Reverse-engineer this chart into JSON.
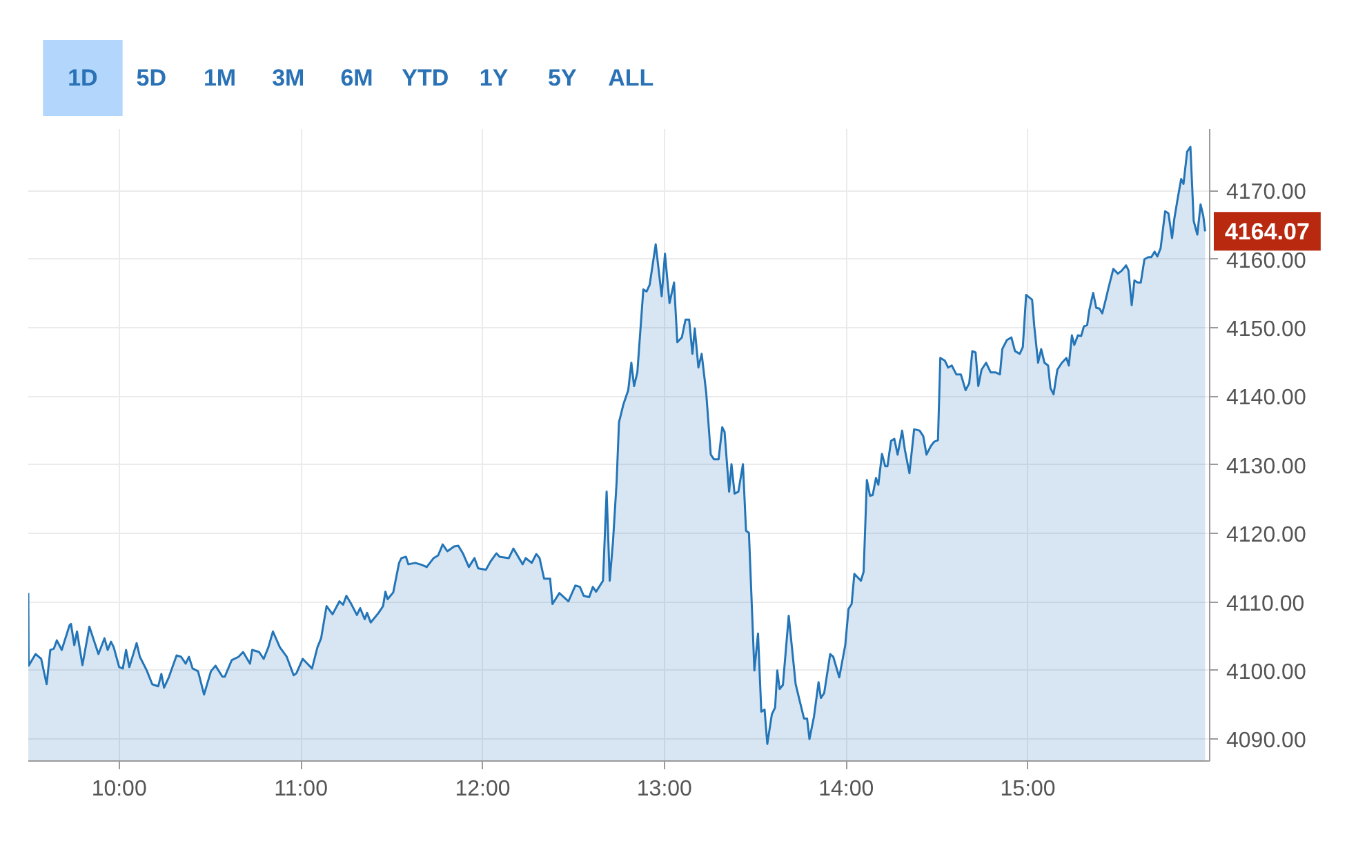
{
  "chart_data": {
    "type": "area",
    "color": "#2475b7",
    "x": [
      9.5,
      9.502,
      9.54,
      9.571,
      9.601,
      9.621,
      9.641,
      9.657,
      9.684,
      9.727,
      9.735,
      9.753,
      9.768,
      9.798,
      9.836,
      9.861,
      9.886,
      9.919,
      9.937,
      9.955,
      9.97,
      10.0,
      10.02,
      10.038,
      10.056,
      10.096,
      10.114,
      10.152,
      10.182,
      10.215,
      10.232,
      10.247,
      10.273,
      10.316,
      10.341,
      10.366,
      10.384,
      10.404,
      10.434,
      10.467,
      10.505,
      10.53,
      10.568,
      10.581,
      10.619,
      10.657,
      10.682,
      10.72,
      10.732,
      10.77,
      10.795,
      10.821,
      10.846,
      10.884,
      10.922,
      10.96,
      10.975,
      11.01,
      11.061,
      11.091,
      11.111,
      11.141,
      11.174,
      11.212,
      11.232,
      11.25,
      11.275,
      11.308,
      11.326,
      11.351,
      11.364,
      11.384,
      11.427,
      11.452,
      11.465,
      11.477,
      11.508,
      11.54,
      11.553,
      11.578,
      11.591,
      11.629,
      11.667,
      11.692,
      11.73,
      11.755,
      11.78,
      11.806,
      11.843,
      11.866,
      11.891,
      11.924,
      11.955,
      11.975,
      12.018,
      12.043,
      12.076,
      12.093,
      12.144,
      12.169,
      12.22,
      12.237,
      12.27,
      12.295,
      12.313,
      12.338,
      12.371,
      12.384,
      12.422,
      12.472,
      12.51,
      12.535,
      12.556,
      12.586,
      12.606,
      12.624,
      12.662,
      12.682,
      12.699,
      12.717,
      12.737,
      12.75,
      12.775,
      12.801,
      12.818,
      12.833,
      12.851,
      12.884,
      12.902,
      12.919,
      12.952,
      12.985,
      13.003,
      13.028,
      13.053,
      13.071,
      13.096,
      13.116,
      13.136,
      13.154,
      13.167,
      13.187,
      13.205,
      13.23,
      13.255,
      13.273,
      13.298,
      13.318,
      13.331,
      13.356,
      13.369,
      13.386,
      13.407,
      13.432,
      13.449,
      13.465,
      13.495,
      13.515,
      13.533,
      13.551,
      13.566,
      13.591,
      13.609,
      13.621,
      13.634,
      13.652,
      13.684,
      13.722,
      13.768,
      13.785,
      13.798,
      13.823,
      13.848,
      13.861,
      13.879,
      13.912,
      13.929,
      13.962,
      13.995,
      14.013,
      14.03,
      14.045,
      14.081,
      14.096,
      14.114,
      14.131,
      14.146,
      14.164,
      14.177,
      14.197,
      14.215,
      14.227,
      14.247,
      14.265,
      14.283,
      14.308,
      14.323,
      14.348,
      14.374,
      14.404,
      14.424,
      14.442,
      14.467,
      14.485,
      14.505,
      14.518,
      14.543,
      14.561,
      14.581,
      14.606,
      14.631,
      14.657,
      14.677,
      14.694,
      14.712,
      14.727,
      14.745,
      14.77,
      14.795,
      14.821,
      14.846,
      14.859,
      14.884,
      14.909,
      14.929,
      14.955,
      14.972,
      14.99,
      15.023,
      15.035,
      15.056,
      15.073,
      15.091,
      15.111,
      15.124,
      15.141,
      15.162,
      15.187,
      15.212,
      15.225,
      15.242,
      15.255,
      15.275,
      15.293,
      15.308,
      15.326,
      15.338,
      15.359,
      15.376,
      15.394,
      15.409,
      15.427,
      15.444,
      15.47,
      15.495,
      15.515,
      15.54,
      15.553,
      15.571,
      15.586,
      15.604,
      15.621,
      15.641,
      15.662,
      15.679,
      15.697,
      15.712,
      15.73,
      15.755,
      15.773,
      15.793,
      15.806,
      15.823,
      15.843,
      15.856,
      15.876,
      15.894,
      15.912,
      15.932,
      15.95,
      15.965,
      15.975
    ],
    "values": [
      4111.3,
      4100.7,
      4102.4,
      4101.7,
      4098.0,
      4103.0,
      4103.2,
      4104.4,
      4103.0,
      4106.6,
      4106.8,
      4103.7,
      4105.7,
      4100.8,
      4106.4,
      4104.4,
      4102.4,
      4104.7,
      4103.0,
      4104.2,
      4103.4,
      4100.5,
      4100.3,
      4103.0,
      4100.5,
      4104.0,
      4102.0,
      4100.0,
      4098.0,
      4097.7,
      4099.5,
      4097.5,
      4099.0,
      4102.2,
      4102.0,
      4101.0,
      4102.0,
      4100.3,
      4099.9,
      4096.5,
      4099.9,
      4100.7,
      4099.1,
      4099.1,
      4101.5,
      4102.0,
      4102.7,
      4101.0,
      4103.0,
      4102.7,
      4101.7,
      4103.4,
      4105.7,
      4103.4,
      4102.0,
      4099.3,
      4099.6,
      4101.7,
      4100.3,
      4103.4,
      4104.7,
      4109.4,
      4108.2,
      4110.1,
      4109.6,
      4110.9,
      4109.8,
      4108.1,
      4109.1,
      4107.5,
      4108.4,
      4107.0,
      4108.4,
      4109.4,
      4111.5,
      4110.4,
      4111.4,
      4115.7,
      4116.4,
      4116.6,
      4115.5,
      4115.7,
      4115.4,
      4115.1,
      4116.4,
      4116.8,
      4118.4,
      4117.4,
      4118.1,
      4118.2,
      4117.1,
      4115.1,
      4116.4,
      4114.9,
      4114.7,
      4115.9,
      4117.1,
      4116.6,
      4116.4,
      4117.8,
      4115.5,
      4116.4,
      4115.7,
      4117.0,
      4116.4,
      4113.4,
      4113.4,
      4109.7,
      4111.3,
      4110.1,
      4112.4,
      4112.2,
      4110.9,
      4110.7,
      4112.2,
      4111.5,
      4113.1,
      4126.1,
      4113.1,
      4118.8,
      4127.5,
      4136.2,
      4138.9,
      4140.9,
      4144.9,
      4141.5,
      4143.5,
      4155.6,
      4155.3,
      4156.3,
      4162.2,
      4154.6,
      4160.8,
      4153.6,
      4156.6,
      4147.9,
      4148.6,
      4151.2,
      4151.2,
      4146.2,
      4149.9,
      4144.2,
      4146.2,
      4140.5,
      4131.5,
      4130.8,
      4130.8,
      4135.5,
      4134.8,
      4126.1,
      4130.1,
      4125.8,
      4126.1,
      4130.1,
      4120.4,
      4120.1,
      4100.0,
      4105.4,
      4094.0,
      4094.3,
      4089.3,
      4093.6,
      4094.6,
      4100.0,
      4097.3,
      4097.9,
      4108.0,
      4098.0,
      4093.0,
      4093.0,
      4090.0,
      4093.3,
      4098.3,
      4096.0,
      4096.7,
      4102.4,
      4102.0,
      4099.0,
      4103.7,
      4109.0,
      4109.7,
      4114.1,
      4113.1,
      4114.4,
      4127.8,
      4125.5,
      4125.6,
      4128.1,
      4127.1,
      4131.6,
      4129.8,
      4129.8,
      4133.5,
      4133.8,
      4131.5,
      4135.0,
      4132.2,
      4128.8,
      4135.2,
      4135.0,
      4134.2,
      4131.5,
      4132.8,
      4133.4,
      4133.6,
      4145.6,
      4145.2,
      4144.2,
      4144.5,
      4143.2,
      4143.2,
      4140.9,
      4141.9,
      4146.6,
      4146.4,
      4141.5,
      4143.9,
      4144.9,
      4143.5,
      4143.5,
      4143.2,
      4146.9,
      4148.2,
      4148.6,
      4146.6,
      4146.2,
      4147.2,
      4154.8,
      4154.1,
      4150.2,
      4144.9,
      4146.9,
      4144.9,
      4144.5,
      4141.2,
      4140.3,
      4143.9,
      4144.9,
      4145.6,
      4144.5,
      4148.9,
      4147.5,
      4148.9,
      4148.8,
      4150.2,
      4150.4,
      4152.6,
      4155.1,
      4152.9,
      4152.8,
      4152.1,
      4154.0,
      4155.9,
      4158.6,
      4157.9,
      4158.3,
      4159.1,
      4158.4,
      4153.3,
      4156.9,
      4156.6,
      4156.6,
      4160.0,
      4160.3,
      4160.3,
      4161.1,
      4160.4,
      4161.6,
      4167.0,
      4166.7,
      4163.1,
      4166.0,
      4168.7,
      4171.7,
      4171.0,
      4175.7,
      4176.4,
      4165.6,
      4163.6,
      4168.0,
      4166.3,
      4164.07
    ],
    "xlim": [
      9.5,
      16.0
    ],
    "ylim": [
      4086.8,
      4179
    ],
    "xticks": [
      {
        "value": 10,
        "label": "10:00"
      },
      {
        "value": 11,
        "label": "11:00"
      },
      {
        "value": 12,
        "label": "12:00"
      },
      {
        "value": 13,
        "label": "13:00"
      },
      {
        "value": 14,
        "label": "14:00"
      },
      {
        "value": 15,
        "label": "15:00"
      }
    ],
    "yticks": [
      {
        "value": 4090,
        "label": "4090.00"
      },
      {
        "value": 4100,
        "label": "4100.00"
      },
      {
        "value": 4110,
        "label": "4110.00"
      },
      {
        "value": 4120,
        "label": "4120.00"
      },
      {
        "value": 4130,
        "label": "4130.00"
      },
      {
        "value": 4140,
        "label": "4140.00"
      },
      {
        "value": 4150,
        "label": "4150.00"
      },
      {
        "value": 4160,
        "label": "4160.00"
      },
      {
        "value": 4170,
        "label": "4170.00"
      }
    ],
    "grid": true,
    "annotations": [
      "1D",
      "5D",
      "1M",
      "3M",
      "6M",
      "YTD",
      "1Y",
      "5Y",
      "ALL",
      {
        "text": "4164.07",
        "x": 15.975,
        "y": 4164.07
      }
    ]
  }
}
